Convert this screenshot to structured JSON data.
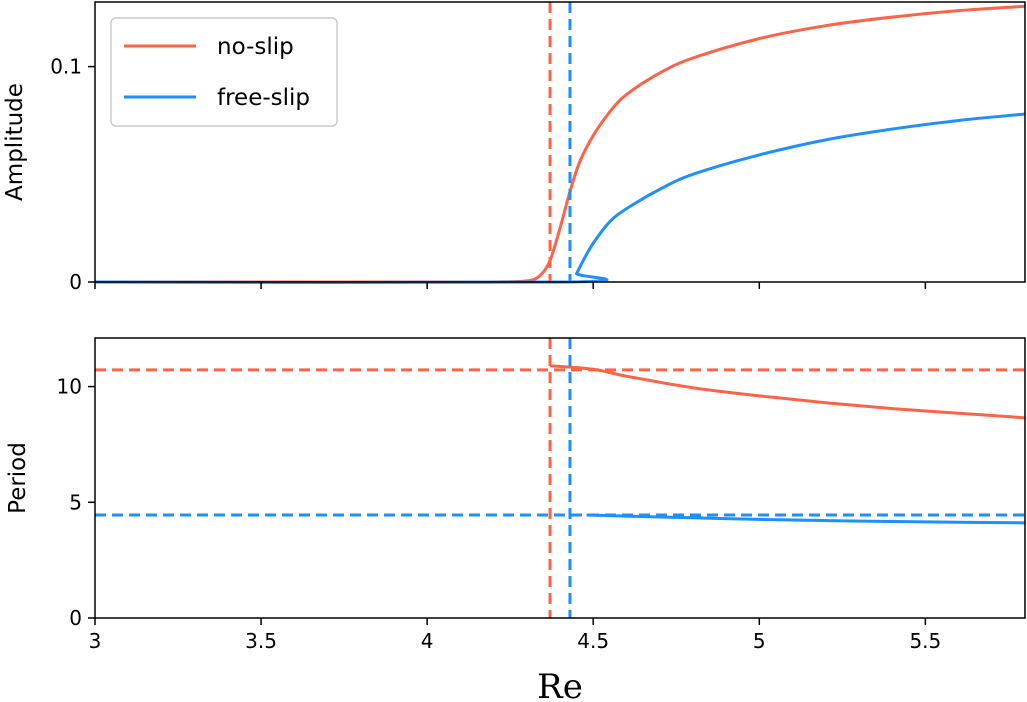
{
  "chart_data": [
    {
      "type": "line",
      "ylabel": "Amplitude",
      "xlim": [
        3,
        5.8
      ],
      "ylim": [
        0,
        0.13
      ],
      "xticks": [
        3,
        3.5,
        4,
        4.5,
        5,
        5.5
      ],
      "yticks": [
        0,
        0.1
      ],
      "ytick_labels": [
        "0",
        "0.1"
      ],
      "legend": {
        "placement": "top-left",
        "entries": [
          "no-slip",
          "free-slip"
        ]
      },
      "series": [
        {
          "name": "no-slip",
          "color": "#ff6347",
          "x": [
            3.0,
            4.0,
            4.2,
            4.3,
            4.34,
            4.37,
            4.4,
            4.43,
            4.46,
            4.5,
            4.55,
            4.6,
            4.7,
            4.8,
            5.0,
            5.2,
            5.4,
            5.6,
            5.8
          ],
          "y": [
            0.0,
            0.0,
            0.0,
            0.0005,
            0.003,
            0.01,
            0.025,
            0.042,
            0.056,
            0.068,
            0.079,
            0.087,
            0.097,
            0.104,
            0.113,
            0.119,
            0.123,
            0.126,
            0.128
          ]
        },
        {
          "name": "free-slip",
          "color": "#1e8fff",
          "x": [
            3.0,
            4.43,
            4.45,
            4.47,
            4.5,
            4.55,
            4.6,
            4.7,
            4.8,
            5.0,
            5.2,
            5.4,
            5.6,
            5.8
          ],
          "y": [
            0.0,
            0.0,
            0.004,
            0.01,
            0.018,
            0.028,
            0.034,
            0.043,
            0.05,
            0.059,
            0.066,
            0.071,
            0.075,
            0.078
          ]
        }
      ],
      "vlines": [
        {
          "x": 4.37,
          "color": "#ff6347",
          "style": "dashed"
        },
        {
          "x": 4.43,
          "color": "#1e8fff",
          "style": "dashed"
        }
      ]
    },
    {
      "type": "line",
      "ylabel": "Period",
      "xlabel": "Re",
      "xlim": [
        3,
        5.8
      ],
      "ylim": [
        0,
        12.1
      ],
      "xticks": [
        3,
        3.5,
        4,
        4.5,
        5,
        5.5
      ],
      "xtick_labels": [
        "3",
        "3.5",
        "4",
        "4.5",
        "5",
        "5.5"
      ],
      "yticks": [
        0,
        5,
        10
      ],
      "ytick_labels": [
        "0",
        "5",
        "10"
      ],
      "series": [
        {
          "name": "no-slip",
          "color": "#ff6347",
          "x": [
            4.37,
            4.5,
            4.6,
            4.8,
            5.0,
            5.2,
            5.4,
            5.6,
            5.8
          ],
          "y": [
            10.9,
            10.75,
            10.45,
            9.95,
            9.6,
            9.3,
            9.05,
            8.85,
            8.65
          ]
        },
        {
          "name": "free-slip",
          "color": "#1e8fff",
          "x": [
            4.48,
            4.6,
            4.8,
            5.0,
            5.2,
            5.4,
            5.6,
            5.8
          ],
          "y": [
            4.45,
            4.4,
            4.33,
            4.26,
            4.21,
            4.17,
            4.14,
            4.11
          ]
        }
      ],
      "vlines": [
        {
          "x": 4.37,
          "color": "#ff6347",
          "style": "dashed"
        },
        {
          "x": 4.43,
          "color": "#1e8fff",
          "style": "dashed"
        }
      ],
      "hlines": [
        {
          "y": 10.72,
          "color": "#ff6347",
          "style": "dashed"
        },
        {
          "y": 4.45,
          "color": "#1e8fff",
          "style": "dashed"
        }
      ]
    }
  ]
}
